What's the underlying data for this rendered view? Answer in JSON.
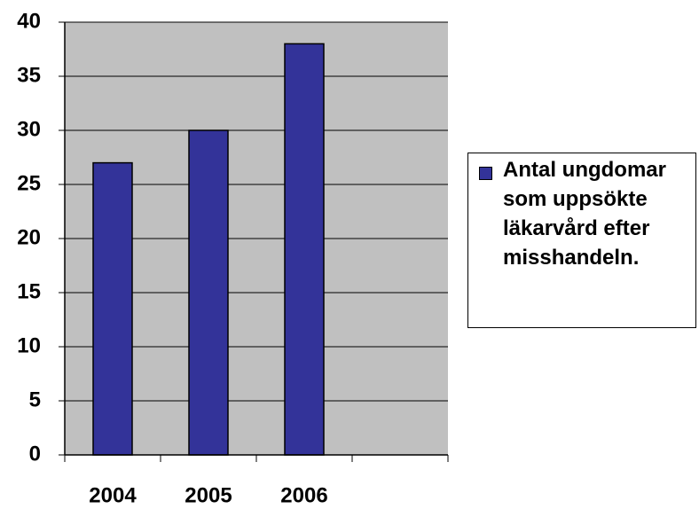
{
  "chart_data": {
    "type": "bar",
    "categories": [
      "2004",
      "2005",
      "2006",
      null
    ],
    "series": [
      {
        "name": "Antal ungdomar som uppsökte läkarvård efter misshandeln.",
        "color": "#333399",
        "values": [
          27,
          30,
          38,
          null
        ]
      }
    ],
    "ylim": [
      0,
      40
    ],
    "yticks": [
      0,
      5,
      10,
      15,
      20,
      25,
      30,
      35,
      40
    ],
    "grid": true,
    "plot_background": "#c0c0c0",
    "legend": "right"
  }
}
